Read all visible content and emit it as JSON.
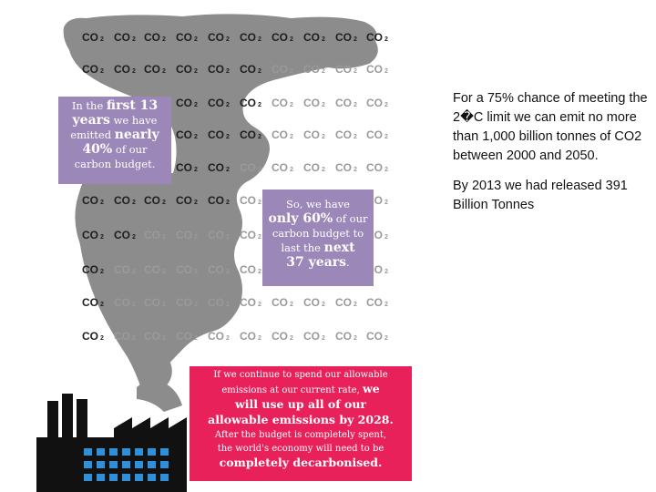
{
  "colors": {
    "smoke": "#8c8c8c",
    "co2_dark": "#1e1e1e",
    "co2_light": "#9a9a9a",
    "purple_box": "#9b87b8",
    "pink_box": "#e8215a",
    "factory": "#111111",
    "windows": "#2f8fd8"
  },
  "co2_label": {
    "main": "CO",
    "sub": "2"
  },
  "box_first13": {
    "line1_a": "In the ",
    "line1_b": "first 13",
    "line2_a": "years",
    "line2_b": " we have",
    "line3_a": "emitted ",
    "line3_b": "nearly",
    "line4_a": "40%",
    "line4_b": " of our",
    "line5": "carbon budget."
  },
  "box_remaining": {
    "line1": "So, we have",
    "line2_a": "only 60%",
    "line2_b": " of our",
    "line3": "carbon budget to",
    "line4_a": "last the ",
    "line4_b": "next",
    "line5_a": "37 years",
    "line5_b": "."
  },
  "box_warning": {
    "line1": "If we continue to spend our allowable",
    "line2_a": "emissions at our current rate, ",
    "line2_b": "we",
    "line3": "will use up all of our",
    "line4": "allowable emissions by 2028.",
    "line5": "After the budget is completely spent,",
    "line6": "the world's economy will need to be",
    "line7": "completely decarbonised."
  },
  "side_text": {
    "para1": "For a 75% chance of meeting the 2�C limit we can emit no more than 1,000 billion tonnes of CO2 between 2000 and 2050.",
    "para2": "By 2013 we had released 391 Billion Tonnes"
  }
}
